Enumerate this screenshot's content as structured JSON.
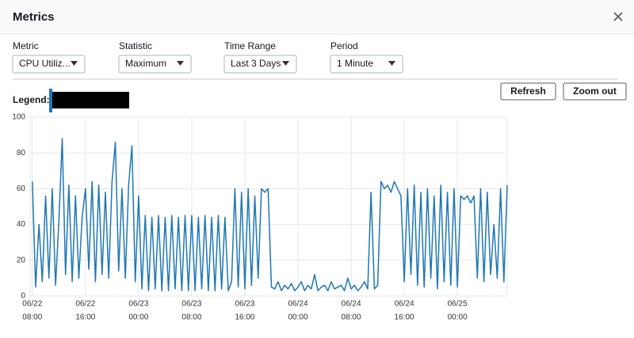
{
  "header": {
    "title": "Metrics"
  },
  "controls": [
    {
      "label": "Metric",
      "value": "CPU Utiliz..."
    },
    {
      "label": "Statistic",
      "value": "Maximum"
    },
    {
      "label": "Time Range",
      "value": "Last 3 Days"
    },
    {
      "label": "Period",
      "value": "1 Minute"
    }
  ],
  "legend": {
    "label": "Legend:"
  },
  "buttons": [
    "Refresh",
    "Zoom out"
  ],
  "chart_data": {
    "type": "line",
    "color": "#1f77b4",
    "grid": true,
    "ylim": [
      0,
      100
    ],
    "yticks": [
      0,
      20,
      40,
      60,
      80,
      100
    ],
    "xlim": [
      "06/22 07:40",
      "06/25 07:30"
    ],
    "xticks": [
      {
        "date": "06/22",
        "time": "08:00"
      },
      {
        "date": "06/22",
        "time": "16:00"
      },
      {
        "date": "06/23",
        "time": "00:00"
      },
      {
        "date": "06/23",
        "time": "08:00"
      },
      {
        "date": "06/23",
        "time": "16:00"
      },
      {
        "date": "06/24",
        "time": "00:00"
      },
      {
        "date": "06/24",
        "time": "08:00"
      },
      {
        "date": "06/24",
        "time": "16:00"
      },
      {
        "date": "06/25",
        "time": "00:00"
      }
    ],
    "x": [
      "06/22 08:00",
      "06/22 08:30",
      "06/22 09:00",
      "06/22 09:30",
      "06/22 10:00",
      "06/22 10:30",
      "06/22 11:00",
      "06/22 11:30",
      "06/22 12:00",
      "06/22 12:30",
      "06/22 13:00",
      "06/22 13:30",
      "06/22 14:00",
      "06/22 14:30",
      "06/22 15:00",
      "06/22 15:30",
      "06/22 16:00",
      "06/22 16:30",
      "06/22 17:00",
      "06/22 17:30",
      "06/22 18:00",
      "06/22 18:30",
      "06/22 19:00",
      "06/22 19:30",
      "06/22 20:00",
      "06/22 20:30",
      "06/22 21:00",
      "06/22 21:30",
      "06/22 22:00",
      "06/22 22:30",
      "06/22 23:00",
      "06/22 23:30",
      "06/23 00:00",
      "06/23 00:30",
      "06/23 01:00",
      "06/23 01:30",
      "06/23 02:00",
      "06/23 02:30",
      "06/23 03:00",
      "06/23 03:30",
      "06/23 04:00",
      "06/23 04:30",
      "06/23 05:00",
      "06/23 05:30",
      "06/23 06:00",
      "06/23 06:30",
      "06/23 07:00",
      "06/23 07:30",
      "06/23 08:00",
      "06/23 08:30",
      "06/23 09:00",
      "06/23 09:30",
      "06/23 10:00",
      "06/23 10:30",
      "06/23 11:00",
      "06/23 11:30",
      "06/23 12:00",
      "06/23 12:30",
      "06/23 13:00",
      "06/23 13:30",
      "06/23 14:00",
      "06/23 14:30",
      "06/23 15:00",
      "06/23 15:30",
      "06/23 16:00",
      "06/23 16:30",
      "06/23 17:00",
      "06/23 17:30",
      "06/23 18:00",
      "06/23 18:30",
      "06/23 19:00",
      "06/23 19:30",
      "06/23 20:00",
      "06/23 20:30",
      "06/23 21:00",
      "06/23 21:30",
      "06/23 22:00",
      "06/23 22:30",
      "06/23 23:00",
      "06/23 23:30",
      "06/24 00:00",
      "06/24 00:30",
      "06/24 01:00",
      "06/24 01:30",
      "06/24 02:00",
      "06/24 02:30",
      "06/24 03:00",
      "06/24 03:30",
      "06/24 04:00",
      "06/24 04:30",
      "06/24 05:00",
      "06/24 05:30",
      "06/24 06:00",
      "06/24 06:30",
      "06/24 07:00",
      "06/24 07:30",
      "06/24 08:00",
      "06/24 08:30",
      "06/24 09:00",
      "06/24 09:30",
      "06/24 10:00",
      "06/24 10:30",
      "06/24 11:00",
      "06/24 11:30",
      "06/24 12:00",
      "06/24 12:30",
      "06/24 13:00",
      "06/24 13:30",
      "06/24 14:00",
      "06/24 14:30",
      "06/24 15:00",
      "06/24 15:30",
      "06/24 16:00",
      "06/24 16:30",
      "06/24 17:00",
      "06/24 17:30",
      "06/24 18:00",
      "06/24 18:30",
      "06/24 19:00",
      "06/24 19:30",
      "06/24 20:00",
      "06/24 20:30",
      "06/24 21:00",
      "06/24 21:30",
      "06/24 22:00",
      "06/24 22:30",
      "06/24 23:00",
      "06/24 23:30",
      "06/25 00:00",
      "06/25 00:30",
      "06/25 01:00",
      "06/25 01:30",
      "06/25 02:00",
      "06/25 02:30",
      "06/25 03:00",
      "06/25 03:30",
      "06/25 04:00",
      "06/25 04:30",
      "06/25 05:00",
      "06/25 05:30",
      "06/25 06:00",
      "06/25 06:30",
      "06/25 07:00",
      "06/25 07:30"
    ],
    "values": [
      64,
      5,
      40,
      8,
      56,
      10,
      60,
      6,
      42,
      88,
      12,
      62,
      8,
      56,
      10,
      44,
      60,
      15,
      64,
      8,
      62,
      12,
      58,
      10,
      64,
      86,
      14,
      60,
      10,
      62,
      84,
      8,
      56,
      4,
      45,
      3,
      44,
      4,
      45,
      3,
      44,
      3,
      45,
      4,
      44,
      3,
      45,
      3,
      45,
      3,
      44,
      4,
      45,
      3,
      44,
      3,
      45,
      4,
      44,
      3,
      8,
      60,
      5,
      58,
      4,
      60,
      6,
      56,
      10,
      60,
      58,
      60,
      5,
      4,
      8,
      3,
      6,
      4,
      7,
      3,
      5,
      8,
      3,
      6,
      4,
      12,
      3,
      5,
      6,
      3,
      8,
      4,
      5,
      6,
      3,
      10,
      4,
      6,
      3,
      5,
      8,
      4,
      58,
      4,
      6,
      64,
      60,
      62,
      58,
      64,
      60,
      56,
      8,
      60,
      12,
      62,
      6,
      58,
      5,
      60,
      10,
      56,
      4,
      62,
      8,
      58,
      6,
      60,
      5,
      56,
      54,
      56,
      52,
      56,
      10,
      60,
      8,
      58,
      12,
      40,
      10,
      60,
      8,
      62
    ]
  }
}
